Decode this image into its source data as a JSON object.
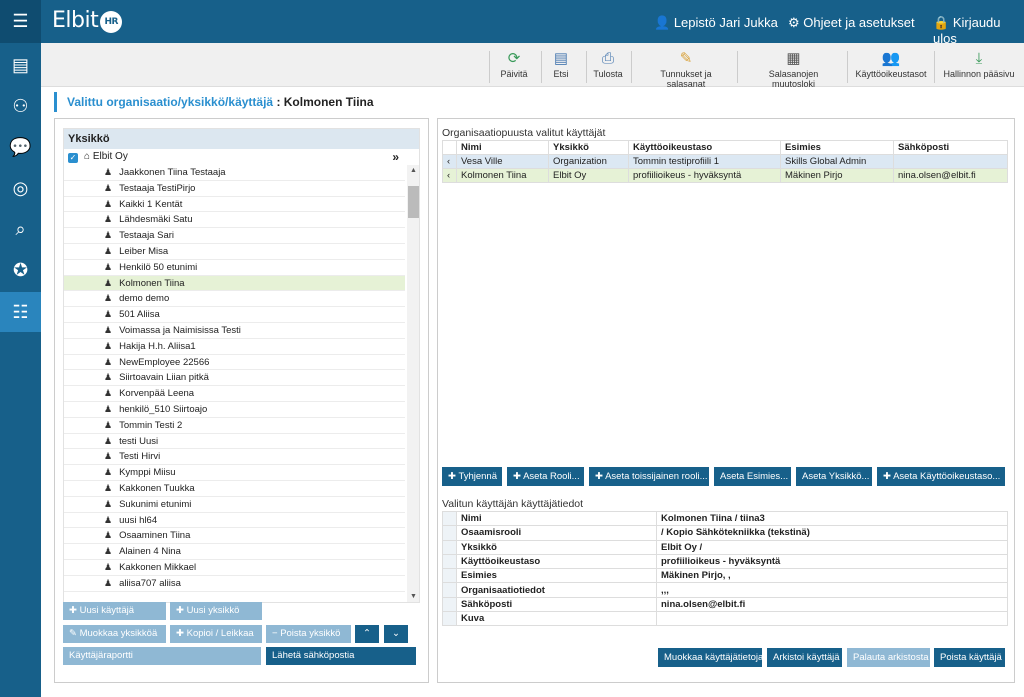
{
  "app": {
    "logo_text": "Elbit",
    "logo_badge": "HR",
    "menu_icon": "hamburger-icon"
  },
  "header": {
    "user": "Lepistö Jari Jukka",
    "settings": "Ohjeet ja asetukset",
    "logout": "Kirjaudu ulos"
  },
  "sidebar": [
    "profile-card-icon",
    "person-gear-icon",
    "chat-icon",
    "user-search-icon",
    "search-icon",
    "award-icon",
    "sliders-icon"
  ],
  "toolbar": {
    "refresh": "Päivitä",
    "search": "Etsi",
    "print": "Tulosta",
    "credentials": "Tunnukset ja salasanat",
    "password_log": "Salasanojen muutosloki",
    "access_levels": "Käyttöoikeustasot",
    "admin_home": "Hallinnon pääsivu"
  },
  "breadcrumb": {
    "label": "Valittu organisaatio/yksikkö/käyttäjä",
    "value": ": Kolmonen Tiina"
  },
  "tree": {
    "header": "Yksikkö",
    "root": "Elbit Oy",
    "expand": "»",
    "items": [
      "Jaakkonen Tiina Testaaja",
      "Testaaja TestiPirjo",
      "Kaikki 1 Kentät",
      "Lähdesmäki Satu",
      "Testaaja Sari",
      "Leiber Misa",
      "Henkilö 50 etunimi",
      "Kolmonen Tiina",
      "demo demo",
      "501 Aliisa",
      "Voimassa ja Naimisissa Testi",
      "Hakija H.h. Aliisa1",
      "NewEmployee 22566",
      "Siirtoavain Liian pitkä",
      "Korvenpää Leena",
      "henkilö_510 Siirtoajo",
      "Tommin Testi 2",
      "testi Uusi",
      "Testi Hirvi",
      "Kymppi Miisu",
      "Kakkonen Tuukka",
      "Sukunimi etunimi",
      "uusi hl64",
      "Osaaminen Tiina",
      "Alainen 4 Nina",
      "Kakkonen Mikkael",
      "aliisa707 aliisa"
    ],
    "selected": "Kolmonen Tiina"
  },
  "left_buttons": {
    "new_user": "Uusi käyttäjä",
    "new_unit": "Uusi yksikkö",
    "edit_unit": "Muokkaa yksikköä",
    "copy_cut": "Kopioi / Leikkaa",
    "delete_unit": "Poista yksikkö",
    "user_report": "Käyttäjäraportti",
    "send_email": "Lähetä sähköpostia"
  },
  "selected_users": {
    "title": "Organisaatiopuusta valitut käyttäjät",
    "columns": [
      "Nimi",
      "Yksikkö",
      "Käyttöoikeustaso",
      "Esimies",
      "Sähköposti"
    ],
    "rows": [
      [
        "Vesa Ville",
        "Organization",
        "Tommin testiprofiili 1",
        "Skills Global Admin",
        ""
      ],
      [
        "Kolmonen Tiina",
        "Elbit Oy",
        "profiilioikeus - hyväksyntä",
        "Mäkinen Pirjo",
        "nina.olsen@elbit.fi"
      ]
    ]
  },
  "action_buttons": {
    "clear": "Tyhjennä",
    "set_role": "Aseta Rooli...",
    "set_secondary": "Aseta toissijainen rooli...",
    "set_manager": "Aseta Esimies...",
    "set_unit": "Aseta Yksikkö...",
    "set_access": "Aseta Käyttöoikeustaso..."
  },
  "details": {
    "title": "Valitun käyttäjän käyttäjätiedot",
    "rows": [
      [
        "Nimi",
        "Kolmonen Tiina / tiina3"
      ],
      [
        "Osaamisrooli",
        " / Kopio  Sähkötekniikka (tekstinä)"
      ],
      [
        "Yksikkö",
        "Elbit Oy /"
      ],
      [
        "Käyttöoikeustaso",
        "profiilioikeus - hyväksyntä"
      ],
      [
        "Esimies",
        "Mäkinen Pirjo, ,"
      ],
      [
        "Organisaatiotiedot",
        ",,,"
      ],
      [
        "Sähköposti",
        "nina.olsen@elbit.fi"
      ],
      [
        "Kuva",
        ""
      ]
    ]
  },
  "footer_buttons": {
    "edit_user": "Muokkaa käyttäjätietoja",
    "archive": "Arkistoi käyttäjä",
    "restore": "Palauta arkistosta",
    "delete": "Poista käyttäjä"
  },
  "colors": {
    "brand": "#17608a",
    "accent": "#2a8fcf",
    "selected_row": "#e6f2d6",
    "disabled_btn": "#8fb8d4"
  }
}
